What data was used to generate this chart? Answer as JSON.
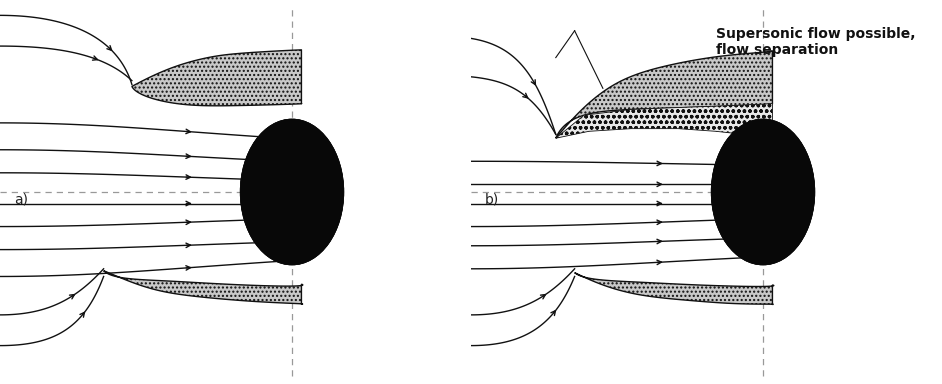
{
  "fig_width": 9.42,
  "fig_height": 3.84,
  "dpi": 100,
  "bg_color": "#ffffff",
  "label_a": "a)",
  "label_b": "b)",
  "annotation_text": "Supersonic flow possible,\nflow separation",
  "annotation_fontsize": 10,
  "label_fontsize": 10,
  "lip_facecolor": "#cccccc",
  "body_color": "#080808",
  "line_color": "#111111",
  "dashed_color": "#999999"
}
